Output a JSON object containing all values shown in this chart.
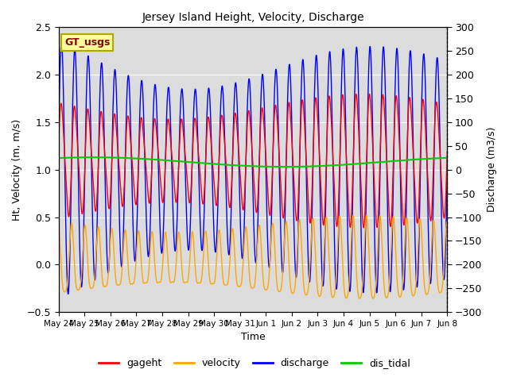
{
  "title": "Jersey Island Height, Velocity, Discharge",
  "ylabel_left": "Ht, Velocity (m, m/s)",
  "ylabel_right": "Discharge (m3/s)",
  "xlabel": "Time",
  "ylim_left": [
    -0.5,
    2.5
  ],
  "ylim_right": [
    -300,
    300
  ],
  "bg_color": "#dcdcdc",
  "fig_bg": "#ffffff",
  "legend_label": "GT_usgs",
  "legend_bg": "#ffff99",
  "legend_text_color": "#8b0000",
  "line_colors": {
    "gageht": "#ff0000",
    "velocity": "#ffa500",
    "discharge": "#0000ff",
    "dis_tidal": "#00cc00"
  },
  "num_points": 4000,
  "tidal_period_hours": 12.42,
  "gageht_mean": 1.1,
  "gageht_amp": 0.55,
  "velocity_amp": 0.35,
  "discharge_amp": 230,
  "dis_tidal_mean": 1.08,
  "dis_tidal_variation": 0.05,
  "tick_dates": [
    "May 24",
    "May 25",
    "May 26",
    "May 27",
    "May 28",
    "May 29",
    "May 30",
    "May 31",
    "Jun 1",
    "Jun 2",
    "Jun 3",
    "Jun 4",
    "Jun 5",
    "Jun 6",
    "Jun 7",
    "Jun 8"
  ],
  "left_yticks": [
    -0.5,
    0.0,
    0.5,
    1.0,
    1.5,
    2.0,
    2.5
  ],
  "right_yticks": [
    -300,
    -250,
    -200,
    -150,
    -100,
    -50,
    0,
    50,
    100,
    150,
    200,
    250,
    300
  ]
}
